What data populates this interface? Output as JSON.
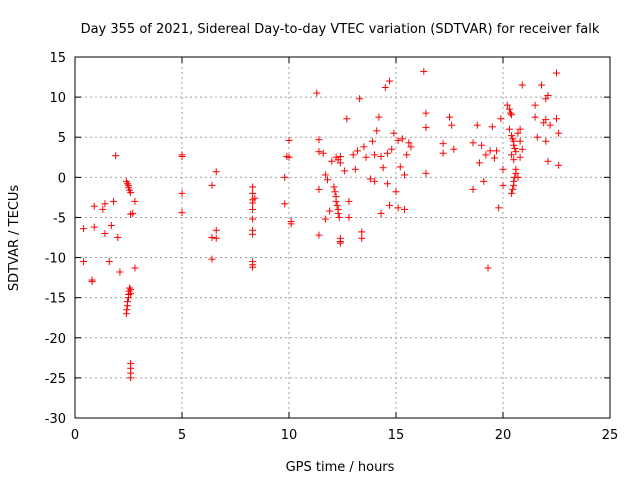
{
  "chart_data": {
    "type": "scatter",
    "title": "Day 355 of 2021, Sidereal Day-to-day VTEC variation (SDTVAR) for receiver falk",
    "xlabel": "GPS time / hours",
    "ylabel": "SDTVAR / TECUs",
    "xlim": [
      0,
      25
    ],
    "ylim": [
      -30,
      15
    ],
    "xticks": [
      0,
      5,
      10,
      15,
      20,
      25
    ],
    "yticks": [
      -30,
      -25,
      -20,
      -15,
      -10,
      -5,
      0,
      5,
      10,
      15
    ],
    "grid": true,
    "marker": "+",
    "color": "#ff0000",
    "series": [
      {
        "name": "SDTVAR",
        "points": [
          [
            0.4,
            -6.4
          ],
          [
            0.4,
            -10.5
          ],
          [
            0.8,
            -12.8
          ],
          [
            0.8,
            -13.0
          ],
          [
            0.9,
            -6.2
          ],
          [
            0.9,
            -3.6
          ],
          [
            1.3,
            -4.0
          ],
          [
            1.4,
            -3.3
          ],
          [
            1.4,
            -7.0
          ],
          [
            1.6,
            -10.5
          ],
          [
            1.7,
            -6.0
          ],
          [
            1.8,
            -3.0
          ],
          [
            1.9,
            2.7
          ],
          [
            2.0,
            -7.5
          ],
          [
            2.1,
            -11.8
          ],
          [
            2.4,
            -0.5
          ],
          [
            2.45,
            -0.8
          ],
          [
            2.5,
            -1.0
          ],
          [
            2.5,
            -1.3
          ],
          [
            2.55,
            -1.6
          ],
          [
            2.6,
            -1.9
          ],
          [
            2.6,
            -4.6
          ],
          [
            2.7,
            -4.5
          ],
          [
            2.8,
            -3.0
          ],
          [
            2.8,
            -11.3
          ],
          [
            2.4,
            -17.0
          ],
          [
            2.42,
            -16.5
          ],
          [
            2.45,
            -16.0
          ],
          [
            2.45,
            -15.5
          ],
          [
            2.5,
            -15.0
          ],
          [
            2.5,
            -14.6
          ],
          [
            2.52,
            -14.2
          ],
          [
            2.55,
            -13.8
          ],
          [
            2.6,
            -14.0
          ],
          [
            2.6,
            -14.5
          ],
          [
            2.6,
            -23.2
          ],
          [
            2.6,
            -23.8
          ],
          [
            2.6,
            -24.4
          ],
          [
            2.6,
            -25.0
          ],
          [
            5.0,
            2.8
          ],
          [
            5.0,
            2.6
          ],
          [
            5.0,
            -2.0
          ],
          [
            5.0,
            -4.4
          ],
          [
            6.4,
            -1.0
          ],
          [
            6.4,
            -7.5
          ],
          [
            6.4,
            -10.2
          ],
          [
            6.6,
            0.7
          ],
          [
            6.6,
            -6.6
          ],
          [
            6.6,
            -7.6
          ],
          [
            8.3,
            -1.2
          ],
          [
            8.3,
            -2.0
          ],
          [
            8.3,
            -2.8
          ],
          [
            8.3,
            -3.2
          ],
          [
            8.3,
            -4.0
          ],
          [
            8.3,
            -5.2
          ],
          [
            8.3,
            -6.6
          ],
          [
            8.3,
            -7.1
          ],
          [
            8.3,
            -10.5
          ],
          [
            8.3,
            -10.9
          ],
          [
            8.3,
            -11.2
          ],
          [
            8.4,
            -2.6
          ],
          [
            9.8,
            0.0
          ],
          [
            9.8,
            -3.3
          ],
          [
            9.9,
            2.6
          ],
          [
            10.0,
            4.6
          ],
          [
            10.0,
            2.5
          ],
          [
            10.1,
            -5.5
          ],
          [
            10.1,
            -5.8
          ],
          [
            11.3,
            10.5
          ],
          [
            11.4,
            4.7
          ],
          [
            11.4,
            3.2
          ],
          [
            11.4,
            -1.5
          ],
          [
            11.4,
            -7.2
          ],
          [
            11.6,
            3.0
          ],
          [
            11.7,
            0.3
          ],
          [
            11.7,
            -5.2
          ],
          [
            11.8,
            -0.3
          ],
          [
            12.0,
            2.0
          ],
          [
            11.9,
            -4.2
          ],
          [
            12.1,
            -1.2
          ],
          [
            12.15,
            -1.8
          ],
          [
            12.2,
            -2.4
          ],
          [
            12.2,
            -3.0
          ],
          [
            12.25,
            -3.5
          ],
          [
            12.3,
            -4.0
          ],
          [
            12.3,
            -4.5
          ],
          [
            12.35,
            -5.0
          ],
          [
            12.2,
            2.5
          ],
          [
            12.3,
            2.2
          ],
          [
            12.4,
            1.8
          ],
          [
            12.4,
            2.6
          ],
          [
            12.4,
            -7.6
          ],
          [
            12.4,
            -8.2
          ],
          [
            12.4,
            -8.0
          ],
          [
            12.6,
            0.8
          ],
          [
            12.7,
            7.3
          ],
          [
            12.8,
            -3.0
          ],
          [
            12.8,
            -5.0
          ],
          [
            13.0,
            2.8
          ],
          [
            13.1,
            1.0
          ],
          [
            13.2,
            3.3
          ],
          [
            13.3,
            9.8
          ],
          [
            13.4,
            -6.8
          ],
          [
            13.4,
            -7.6
          ],
          [
            13.5,
            3.8
          ],
          [
            13.6,
            2.5
          ],
          [
            13.8,
            -0.2
          ],
          [
            13.9,
            4.5
          ],
          [
            14.0,
            2.8
          ],
          [
            14.0,
            -0.5
          ],
          [
            14.1,
            5.8
          ],
          [
            14.2,
            7.5
          ],
          [
            14.3,
            -4.5
          ],
          [
            14.3,
            2.6
          ],
          [
            14.4,
            1.2
          ],
          [
            14.5,
            11.2
          ],
          [
            14.6,
            -0.8
          ],
          [
            14.6,
            3.0
          ],
          [
            14.7,
            12.0
          ],
          [
            14.7,
            -3.5
          ],
          [
            14.8,
            3.5
          ],
          [
            14.9,
            5.5
          ],
          [
            15.0,
            -1.8
          ],
          [
            15.1,
            4.6
          ],
          [
            15.1,
            -3.8
          ],
          [
            15.2,
            1.3
          ],
          [
            15.3,
            4.8
          ],
          [
            15.4,
            0.3
          ],
          [
            15.4,
            -4.0
          ],
          [
            15.5,
            2.8
          ],
          [
            15.6,
            4.3
          ],
          [
            15.7,
            3.8
          ],
          [
            16.3,
            13.2
          ],
          [
            16.4,
            8.0
          ],
          [
            16.4,
            6.2
          ],
          [
            16.4,
            0.5
          ],
          [
            17.2,
            4.2
          ],
          [
            17.2,
            3.0
          ],
          [
            17.5,
            7.5
          ],
          [
            17.6,
            6.5
          ],
          [
            17.7,
            3.5
          ],
          [
            18.6,
            4.3
          ],
          [
            18.6,
            -1.5
          ],
          [
            18.8,
            6.5
          ],
          [
            18.9,
            1.8
          ],
          [
            19.0,
            4.0
          ],
          [
            19.1,
            -0.5
          ],
          [
            19.2,
            2.8
          ],
          [
            19.3,
            -11.3
          ],
          [
            19.4,
            3.3
          ],
          [
            19.5,
            6.3
          ],
          [
            19.6,
            2.4
          ],
          [
            19.7,
            3.3
          ],
          [
            19.8,
            -3.8
          ],
          [
            19.9,
            7.3
          ],
          [
            20.0,
            1.0
          ],
          [
            20.0,
            -1.0
          ],
          [
            20.2,
            9.0
          ],
          [
            20.3,
            8.5
          ],
          [
            20.35,
            8.0
          ],
          [
            20.4,
            7.8
          ],
          [
            20.3,
            6.0
          ],
          [
            20.4,
            5.2
          ],
          [
            20.45,
            4.8
          ],
          [
            20.5,
            4.5
          ],
          [
            20.5,
            4.0
          ],
          [
            20.55,
            3.6
          ],
          [
            20.6,
            3.2
          ],
          [
            20.4,
            2.8
          ],
          [
            20.5,
            2.2
          ],
          [
            20.4,
            -2.0
          ],
          [
            20.45,
            -1.5
          ],
          [
            20.5,
            -1.0
          ],
          [
            20.5,
            -0.5
          ],
          [
            20.55,
            0.0
          ],
          [
            20.6,
            0.5
          ],
          [
            20.6,
            1.0
          ],
          [
            20.7,
            0.0
          ],
          [
            20.7,
            5.5
          ],
          [
            20.8,
            4.5
          ],
          [
            20.8,
            6.0
          ],
          [
            20.9,
            11.5
          ],
          [
            20.9,
            3.5
          ],
          [
            20.8,
            2.5
          ],
          [
            21.5,
            9.0
          ],
          [
            21.5,
            7.5
          ],
          [
            21.6,
            5.0
          ],
          [
            21.8,
            11.5
          ],
          [
            21.9,
            6.8
          ],
          [
            22.0,
            9.8
          ],
          [
            22.0,
            7.2
          ],
          [
            22.0,
            4.5
          ],
          [
            22.1,
            10.2
          ],
          [
            22.1,
            2.0
          ],
          [
            22.2,
            6.5
          ],
          [
            22.5,
            13.0
          ],
          [
            22.5,
            7.3
          ],
          [
            22.6,
            5.5
          ],
          [
            22.6,
            1.5
          ]
        ]
      }
    ]
  }
}
